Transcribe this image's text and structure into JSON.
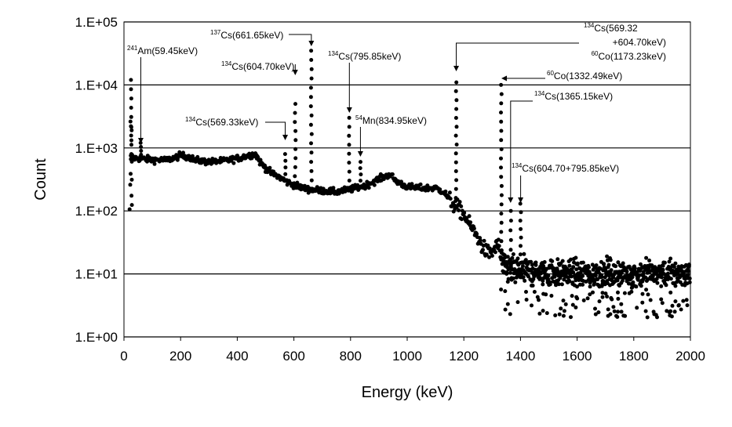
{
  "chart_data": {
    "type": "scatter",
    "xlabel": "Energy (keV)",
    "ylabel": "Count",
    "xlim": [
      0,
      2000
    ],
    "ylim": [
      1,
      100000
    ],
    "y_scale": "log",
    "x_ticks": [
      "0",
      "200",
      "400",
      "600",
      "800",
      "1000",
      "1200",
      "1400",
      "1600",
      "1800",
      "2000"
    ],
    "y_ticks": [
      "1.E+00",
      "1.E+01",
      "1.E+02",
      "1.E+03",
      "1.E+04",
      "1.E+05"
    ],
    "grid": "horizontal",
    "marker_color": "#000000",
    "spectrum_envelope": [
      [
        20,
        100
      ],
      [
        25,
        800
      ],
      [
        30,
        700
      ],
      [
        50,
        680
      ],
      [
        100,
        650
      ],
      [
        150,
        640
      ],
      [
        180,
        700
      ],
      [
        200,
        760
      ],
      [
        230,
        720
      ],
      [
        250,
        640
      ],
      [
        300,
        600
      ],
      [
        350,
        620
      ],
      [
        400,
        680
      ],
      [
        440,
        760
      ],
      [
        465,
        800
      ],
      [
        480,
        600
      ],
      [
        500,
        480
      ],
      [
        520,
        400
      ],
      [
        550,
        340
      ],
      [
        580,
        280
      ],
      [
        600,
        260
      ],
      [
        620,
        240
      ],
      [
        650,
        220
      ],
      [
        700,
        210
      ],
      [
        750,
        200
      ],
      [
        800,
        220
      ],
      [
        850,
        250
      ],
      [
        900,
        320
      ],
      [
        940,
        380
      ],
      [
        960,
        300
      ],
      [
        1000,
        240
      ],
      [
        1050,
        230
      ],
      [
        1100,
        230
      ],
      [
        1130,
        200
      ],
      [
        1160,
        130
      ],
      [
        1180,
        110
      ],
      [
        1200,
        90
      ],
      [
        1220,
        60
      ],
      [
        1240,
        45
      ],
      [
        1260,
        30
      ],
      [
        1280,
        22
      ],
      [
        1300,
        22
      ],
      [
        1320,
        30
      ],
      [
        1340,
        12
      ],
      [
        1360,
        12
      ],
      [
        1400,
        11
      ],
      [
        1600,
        10
      ],
      [
        1800,
        10
      ],
      [
        2000,
        10
      ]
    ],
    "peaks": [
      {
        "energy": 25,
        "counts": 12000
      },
      {
        "energy": 59.45,
        "counts": 1200
      },
      {
        "energy": 569.33,
        "counts": 800
      },
      {
        "energy": 604.7,
        "counts": 5000
      },
      {
        "energy": 661.65,
        "counts": 35000
      },
      {
        "energy": 795.85,
        "counts": 3000
      },
      {
        "energy": 834.95,
        "counts": 600
      },
      {
        "energy": 1173.23,
        "counts": 11000
      },
      {
        "energy": 1332.49,
        "counts": 10000
      },
      {
        "energy": 1365.15,
        "counts": 100
      },
      {
        "energy": 1400.55,
        "counts": 130
      }
    ],
    "annotations": [
      {
        "sup": "241",
        "text": "Am(59.45keV)",
        "energy": 59.45
      },
      {
        "sup": "137",
        "text": "Cs(661.65keV)",
        "energy": 661.65
      },
      {
        "sup": "134",
        "text": "Cs(604.70keV)",
        "energy": 604.7
      },
      {
        "sup": "134",
        "text": "Cs(795.85keV)",
        "energy": 795.85
      },
      {
        "sup": "134",
        "text": "Cs(569.33keV)",
        "energy": 569.33
      },
      {
        "sup": "54",
        "text": "Mn(834.95keV)",
        "energy": 834.95
      },
      {
        "sup": "134",
        "text": "Cs(569.32",
        "line2": "+604.70keV)",
        "sup3": "60",
        "line3": "Co(1173.23keV)",
        "energy": 1173.23
      },
      {
        "sup": "60",
        "text": "Co(1332.49keV)",
        "energy": 1332.49
      },
      {
        "sup": "134",
        "text": "Cs(1365.15keV)",
        "energy": 1365.15
      },
      {
        "sup": "134",
        "text": "Cs(604.70+795.85keV)",
        "energy": 1400.55
      }
    ]
  }
}
